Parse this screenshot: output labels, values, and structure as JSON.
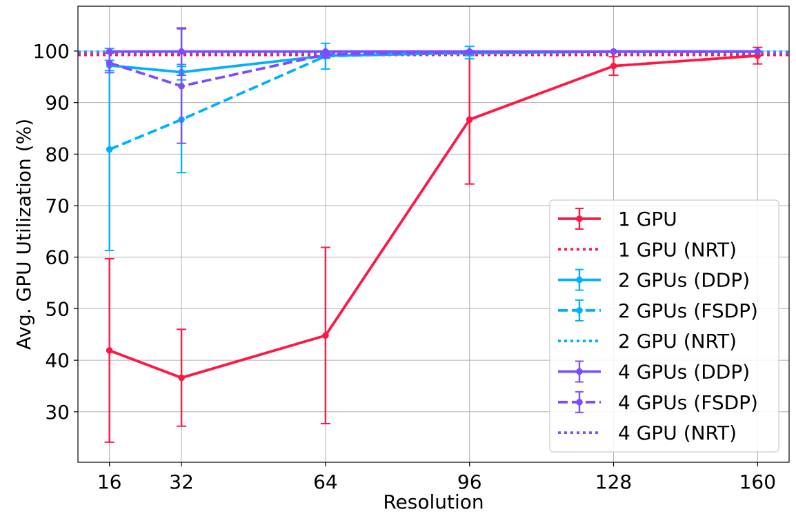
{
  "chart_data": {
    "type": "line",
    "title": "",
    "xlabel": "Resolution",
    "ylabel": "Avg. GPU Utilization (%)",
    "x": [
      16,
      32,
      64,
      96,
      128,
      160
    ],
    "x_ticks": [
      16,
      32,
      64,
      96,
      128,
      160
    ],
    "y_ticks": [
      30,
      40,
      50,
      60,
      70,
      80,
      90,
      100
    ],
    "xlim": [
      9,
      167
    ],
    "ylim": [
      20.2,
      108.7
    ],
    "grid": true,
    "legend_position": "bottom-right",
    "series": [
      {
        "name": "1 GPU",
        "color": "#FF1744",
        "style": "solid",
        "marker": true,
        "x": [
          16,
          32,
          64,
          96,
          128,
          160
        ],
        "values": [
          41.9,
          36.6,
          44.8,
          86.7,
          97.1,
          99.1
        ],
        "err": [
          17.8,
          9.4,
          17.1,
          12.5,
          1.8,
          1.6
        ]
      },
      {
        "name": "1 GPU (NRT)",
        "color": "#FF1744",
        "style": "dotted",
        "marker": false,
        "hline": 99.2
      },
      {
        "name": "2 GPUs (DDP)",
        "color": "#00B0FF",
        "style": "solid",
        "marker": true,
        "x": [
          16,
          32,
          64,
          96,
          128,
          160
        ],
        "values": [
          97.2,
          95.9,
          99.1,
          99.6,
          99.9,
          99.9
        ],
        "err": [
          1.0,
          1.5,
          0.5,
          0.5,
          0.0,
          0.0
        ]
      },
      {
        "name": "2 GPUs (FSDP)",
        "color": "#00B0FF",
        "style": "dashed",
        "marker": true,
        "x": [
          16,
          32,
          64,
          96,
          128,
          160
        ],
        "values": [
          80.9,
          86.7,
          99.0,
          99.7,
          99.9,
          99.9
        ],
        "err": [
          19.6,
          10.3,
          2.5,
          1.2,
          0.0,
          0.0
        ]
      },
      {
        "name": "2 GPU (NRT)",
        "color": "#00B0FF",
        "style": "dotted",
        "marker": false,
        "hline": 99.9
      },
      {
        "name": "4 GPUs (DDP)",
        "color": "#7C4DFF",
        "style": "solid",
        "marker": true,
        "x": [
          16,
          32,
          64,
          96,
          128,
          160
        ],
        "values": [
          99.9,
          99.9,
          99.9,
          99.9,
          99.9,
          99.9
        ],
        "err": [
          0.0,
          4.6,
          0.0,
          0.0,
          0.0,
          0.0
        ]
      },
      {
        "name": "4 GPUs (FSDP)",
        "color": "#7C4DFF",
        "style": "dashed",
        "marker": true,
        "x": [
          16,
          32,
          64,
          96,
          128,
          160
        ],
        "values": [
          97.7,
          93.2,
          99.3,
          99.8,
          99.9,
          99.9
        ],
        "err": [
          1.9,
          11.1,
          0.6,
          0.2,
          0.0,
          0.0
        ]
      },
      {
        "name": "4 GPU (NRT)",
        "color": "#7C4DFF",
        "style": "dotted",
        "marker": false,
        "hline": 99.6
      }
    ]
  }
}
